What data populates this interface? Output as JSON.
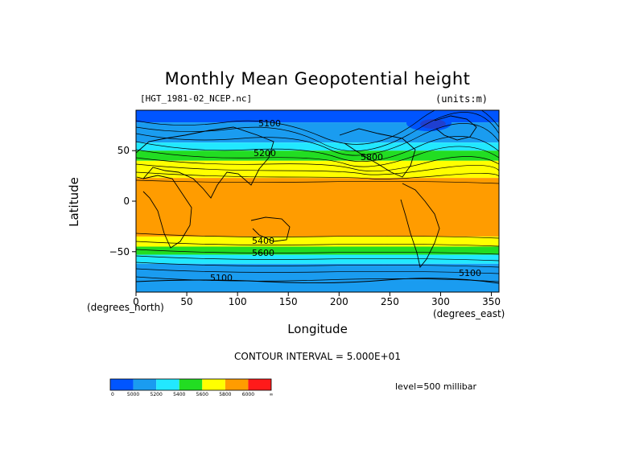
{
  "title": "Monthly Mean Geopotential height",
  "file_label": "[HGT_1981-02_NCEP.nc]",
  "units_label": "(units:m)",
  "contour_interval": "CONTOUR INTERVAL = 5.000E+01",
  "level": "level=500 millibar",
  "chart_data": {
    "type": "heatmap",
    "title": "Monthly Mean Geopotential height",
    "xlabel": "Longitude",
    "ylabel": "Latitude",
    "x_unit": "(degrees_east)",
    "y_unit": "(degrees_north)",
    "xlim": [
      0,
      357.5
    ],
    "ylim": [
      -90,
      90
    ],
    "x_ticks": [
      0,
      50,
      100,
      150,
      200,
      250,
      300,
      350
    ],
    "y_ticks": [
      -50,
      0,
      50
    ],
    "contour_labels": [
      "5100",
      "5200",
      "5400",
      "5600",
      "5800",
      "5100",
      "5100"
    ],
    "colorbar": {
      "labels": [
        "0",
        "5000",
        "5200",
        "5400",
        "5600",
        "5800",
        "6000",
        "∞"
      ],
      "colors": [
        "#0055ff",
        "#1a9cf0",
        "#22e8ff",
        "#22dd22",
        "#ffff00",
        "#ff9c00",
        "#ff1a1a"
      ]
    },
    "bands": [
      {
        "lat_top": 90,
        "lat_bottom": 78,
        "color": "#0055ff"
      },
      {
        "lat_top": 78,
        "lat_bottom": 58,
        "color": "#1a9cf0"
      },
      {
        "lat_top": 58,
        "lat_bottom": 50,
        "color": "#22e8ff"
      },
      {
        "lat_top": 50,
        "lat_bottom": 40,
        "color": "#22dd22"
      },
      {
        "lat_top": 40,
        "lat_bottom": 23,
        "color": "#ffff00"
      },
      {
        "lat_top": 23,
        "lat_bottom": -35,
        "color": "#ff9c00"
      },
      {
        "lat_top": -35,
        "lat_bottom": -45,
        "color": "#ffff00"
      },
      {
        "lat_top": -45,
        "lat_bottom": -53,
        "color": "#22dd22"
      },
      {
        "lat_top": -53,
        "lat_bottom": -62,
        "color": "#22e8ff"
      },
      {
        "lat_top": -62,
        "lat_bottom": -90,
        "color": "#1a9cf0"
      }
    ]
  }
}
